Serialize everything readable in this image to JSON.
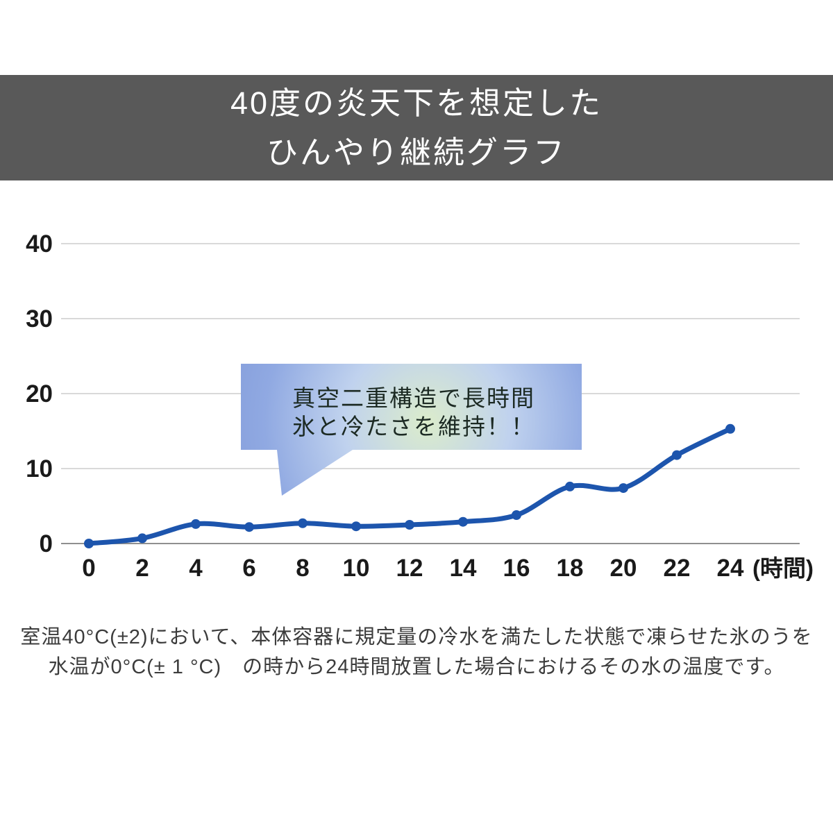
{
  "header": {
    "title_line1": "40度の炎天下を想定した",
    "title_line2": "ひんやり継続グラフ"
  },
  "callout": {
    "line1": "真空二重構造で長時間",
    "line2": "氷と冷たさを維持！！"
  },
  "footnote": {
    "line1": "室温40°C(±2)において、本体容器に規定量の冷水を満たした状態で凍らせた氷のうを",
    "line2": "水温が0°C(± 1 °C)　の時から24時間放置した場合におけるその水の温度です。"
  },
  "chart_data": {
    "type": "line",
    "x": [
      0,
      2,
      4,
      6,
      8,
      10,
      12,
      14,
      16,
      18,
      20,
      22,
      24
    ],
    "values": [
      0,
      0.7,
      2.6,
      2.2,
      2.7,
      2.3,
      2.5,
      2.9,
      3.8,
      7.6,
      7.4,
      11.8,
      15.3
    ],
    "xlabel": "(時間)",
    "ylabel": "",
    "ylim": [
      0,
      40
    ],
    "yticks": [
      0,
      10,
      20,
      30,
      40
    ],
    "grid": true,
    "legend": "none",
    "smooth": true,
    "line_color": "#1d55ad",
    "marker": "circle"
  },
  "colors": {
    "banner_bg": "#595959",
    "banner_text": "#ffffff",
    "gridline": "#d9d9d9",
    "axis_line": "#8f8f8f",
    "tick_text": "#1a1a1a",
    "line": "#1d55ad",
    "callout_text": "#1c2a23",
    "callout_blue_edge": "#88a1dd",
    "callout_blue_mid": "#c0d2ee",
    "callout_green_glow": "#dbeccb",
    "footnote_text": "#3c3c3c"
  }
}
